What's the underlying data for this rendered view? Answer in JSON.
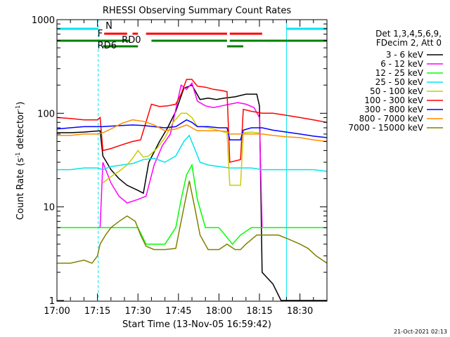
{
  "chart_data": {
    "type": "line",
    "title": "RHESSI Observing Summary Count Rates",
    "xlabel": "Start Time (13-Nov-05 16:59:42)",
    "ylabel_main": "Count Rate (s",
    "ylabel_sup1": "-1",
    "ylabel_mid": " detector",
    "ylabel_sup2": "-1",
    "ylabel_end": ")",
    "y_scale": "log",
    "ylim": [
      1,
      1000
    ],
    "xlim_minutes": [
      0,
      100
    ],
    "x_ticks": [
      {
        "minute": 0,
        "label": "17:00"
      },
      {
        "minute": 15,
        "label": "17:15"
      },
      {
        "minute": 30,
        "label": "17:30"
      },
      {
        "minute": 45,
        "label": "17:45"
      },
      {
        "minute": 60,
        "label": "18:00"
      },
      {
        "minute": 75,
        "label": "18:15"
      },
      {
        "minute": 90,
        "label": "18:30"
      }
    ],
    "y_ticks": [
      {
        "value": 1,
        "label": "1"
      },
      {
        "value": 10,
        "label": "10"
      },
      {
        "value": 100,
        "label": "100"
      },
      {
        "value": 1000,
        "label": "1000"
      }
    ],
    "legend_header": [
      "Det 1,3,4,5,6,9,",
      "FDecim 2, Att 0"
    ],
    "series": [
      {
        "name": "3 - 6 keV",
        "color": "#000000",
        "points": [
          [
            0,
            62
          ],
          [
            5,
            62
          ],
          [
            10,
            63
          ],
          [
            16,
            65
          ],
          [
            17,
            35
          ],
          [
            20,
            25
          ],
          [
            23,
            20
          ],
          [
            26,
            17
          ],
          [
            30,
            15
          ],
          [
            32,
            14
          ],
          [
            34,
            30
          ],
          [
            38,
            50
          ],
          [
            41,
            70
          ],
          [
            44,
            105
          ],
          [
            47,
            185
          ],
          [
            50,
            200
          ],
          [
            53,
            140
          ],
          [
            56,
            145
          ],
          [
            59,
            140
          ],
          [
            62,
            145
          ],
          [
            66,
            150
          ],
          [
            70,
            160
          ],
          [
            74,
            160
          ],
          [
            75,
            120
          ],
          [
            76,
            2
          ],
          [
            80,
            1.5
          ],
          [
            83,
            1
          ],
          [
            100,
            1
          ]
        ]
      },
      {
        "name": "6 - 12 keV",
        "color": "#ff00ff",
        "points": [
          [
            0,
            6
          ],
          [
            15,
            6
          ],
          [
            16,
            6
          ],
          [
            17,
            30
          ],
          [
            20,
            18
          ],
          [
            23,
            13
          ],
          [
            26,
            11
          ],
          [
            30,
            12
          ],
          [
            33,
            13
          ],
          [
            36,
            28
          ],
          [
            39,
            45
          ],
          [
            42,
            60
          ],
          [
            44,
            110
          ],
          [
            46,
            200
          ],
          [
            48,
            180
          ],
          [
            50,
            210
          ],
          [
            52,
            135
          ],
          [
            55,
            120
          ],
          [
            58,
            115
          ],
          [
            61,
            120
          ],
          [
            64,
            125
          ],
          [
            67,
            130
          ],
          [
            70,
            125
          ],
          [
            73,
            115
          ],
          [
            75,
            90
          ],
          [
            76,
            6
          ],
          [
            85,
            6
          ],
          [
            100,
            6
          ]
        ]
      },
      {
        "name": "12 - 25 keV",
        "color": "#00ff00",
        "points": [
          [
            0,
            6
          ],
          [
            5,
            6
          ],
          [
            10,
            6
          ],
          [
            15,
            6
          ],
          [
            20,
            6
          ],
          [
            25,
            6
          ],
          [
            30,
            6
          ],
          [
            33,
            4
          ],
          [
            40,
            4
          ],
          [
            44,
            6
          ],
          [
            46,
            12
          ],
          [
            48,
            22
          ],
          [
            50,
            28
          ],
          [
            52,
            12
          ],
          [
            55,
            6
          ],
          [
            60,
            6
          ],
          [
            65,
            4
          ],
          [
            68,
            5
          ],
          [
            72,
            6
          ],
          [
            80,
            6
          ],
          [
            90,
            6
          ],
          [
            100,
            6
          ]
        ]
      },
      {
        "name": "25 - 50 keV",
        "color": "#00e5ee",
        "points": [
          [
            0,
            25
          ],
          [
            5,
            25
          ],
          [
            10,
            26
          ],
          [
            15,
            26
          ],
          [
            17,
            25
          ],
          [
            20,
            27
          ],
          [
            24,
            28
          ],
          [
            28,
            29
          ],
          [
            32,
            32
          ],
          [
            36,
            33
          ],
          [
            40,
            30
          ],
          [
            44,
            35
          ],
          [
            47,
            50
          ],
          [
            49,
            58
          ],
          [
            51,
            42
          ],
          [
            53,
            30
          ],
          [
            56,
            28
          ],
          [
            60,
            27
          ],
          [
            64,
            26
          ],
          [
            68,
            26
          ],
          [
            72,
            26
          ],
          [
            76,
            25
          ],
          [
            80,
            25
          ],
          [
            85,
            25
          ],
          [
            90,
            25
          ],
          [
            95,
            25
          ],
          [
            100,
            24
          ]
        ]
      },
      {
        "name": "50 - 100 keV",
        "color": "#cccc00",
        "points": [
          [
            17,
            18
          ],
          [
            19,
            20
          ],
          [
            21,
            22
          ],
          [
            23,
            24
          ],
          [
            26,
            28
          ],
          [
            28,
            33
          ],
          [
            30,
            40
          ],
          [
            32,
            34
          ],
          [
            34,
            35
          ],
          [
            37,
            42
          ],
          [
            40,
            55
          ],
          [
            43,
            80
          ],
          [
            46,
            100
          ],
          [
            48,
            100
          ],
          [
            50,
            90
          ],
          [
            52,
            72
          ],
          [
            54,
            72
          ],
          [
            56,
            70
          ],
          [
            58,
            68
          ],
          [
            61,
            64
          ],
          [
            63,
            62
          ],
          [
            64,
            17
          ],
          [
            68,
            17
          ],
          [
            69,
            62
          ],
          [
            72,
            63
          ],
          [
            74,
            62
          ],
          [
            75,
            61
          ]
        ]
      },
      {
        "name": "100 - 300 keV",
        "color": "#ff0000",
        "points": [
          [
            0,
            90
          ],
          [
            5,
            88
          ],
          [
            10,
            85
          ],
          [
            15,
            85
          ],
          [
            16,
            90
          ],
          [
            17,
            40
          ],
          [
            20,
            42
          ],
          [
            24,
            46
          ],
          [
            28,
            50
          ],
          [
            31,
            52
          ],
          [
            35,
            125
          ],
          [
            38,
            118
          ],
          [
            41,
            120
          ],
          [
            44,
            125
          ],
          [
            46,
            160
          ],
          [
            48,
            230
          ],
          [
            50,
            230
          ],
          [
            52,
            195
          ],
          [
            55,
            190
          ],
          [
            58,
            180
          ],
          [
            61,
            175
          ],
          [
            63,
            170
          ],
          [
            64,
            30
          ],
          [
            68,
            32
          ],
          [
            69,
            110
          ],
          [
            72,
            105
          ],
          [
            76,
            100
          ],
          [
            80,
            100
          ],
          [
            85,
            95
          ],
          [
            90,
            90
          ],
          [
            95,
            85
          ],
          [
            100,
            80
          ]
        ]
      },
      {
        "name": "300 - 800 keV",
        "color": "#0000ff",
        "points": [
          [
            0,
            68
          ],
          [
            5,
            70
          ],
          [
            10,
            72
          ],
          [
            15,
            72
          ],
          [
            17,
            72
          ],
          [
            20,
            73
          ],
          [
            24,
            74
          ],
          [
            28,
            75
          ],
          [
            32,
            74
          ],
          [
            36,
            72
          ],
          [
            40,
            70
          ],
          [
            44,
            72
          ],
          [
            48,
            85
          ],
          [
            50,
            80
          ],
          [
            52,
            72
          ],
          [
            56,
            72
          ],
          [
            60,
            70
          ],
          [
            63,
            70
          ],
          [
            64,
            52
          ],
          [
            68,
            52
          ],
          [
            69,
            66
          ],
          [
            72,
            70
          ],
          [
            76,
            70
          ],
          [
            80,
            66
          ],
          [
            85,
            63
          ],
          [
            90,
            60
          ],
          [
            95,
            57
          ],
          [
            100,
            55
          ]
        ]
      },
      {
        "name": "800 - 7000 keV",
        "color": "#ff8c00",
        "points": [
          [
            0,
            58
          ],
          [
            5,
            58
          ],
          [
            10,
            60
          ],
          [
            15,
            60
          ],
          [
            17,
            62
          ],
          [
            20,
            68
          ],
          [
            24,
            78
          ],
          [
            28,
            85
          ],
          [
            32,
            82
          ],
          [
            36,
            75
          ],
          [
            40,
            65
          ],
          [
            44,
            68
          ],
          [
            48,
            75
          ],
          [
            50,
            70
          ],
          [
            52,
            65
          ],
          [
            56,
            65
          ],
          [
            60,
            65
          ],
          [
            63,
            64
          ],
          [
            64,
            60
          ],
          [
            68,
            60
          ],
          [
            69,
            60
          ],
          [
            72,
            60
          ],
          [
            76,
            60
          ],
          [
            80,
            58
          ],
          [
            85,
            56
          ],
          [
            90,
            55
          ],
          [
            95,
            52
          ],
          [
            100,
            50
          ]
        ]
      },
      {
        "name": "7000 - 15000 keV",
        "color": "#808000",
        "points": [
          [
            0,
            2.5
          ],
          [
            5,
            2.5
          ],
          [
            10,
            2.7
          ],
          [
            13,
            2.5
          ],
          [
            15,
            3
          ],
          [
            16,
            4
          ],
          [
            18,
            5
          ],
          [
            20,
            6
          ],
          [
            23,
            7
          ],
          [
            26,
            8
          ],
          [
            29,
            7
          ],
          [
            31,
            5
          ],
          [
            33,
            3.8
          ],
          [
            36,
            3.5
          ],
          [
            40,
            3.5
          ],
          [
            44,
            3.6
          ],
          [
            46,
            7
          ],
          [
            49,
            19
          ],
          [
            51,
            10
          ],
          [
            53,
            5
          ],
          [
            56,
            3.5
          ],
          [
            60,
            3.5
          ],
          [
            63,
            4
          ],
          [
            66,
            3.5
          ],
          [
            68,
            3.5
          ],
          [
            70,
            4
          ],
          [
            74,
            5
          ],
          [
            78,
            5
          ],
          [
            82,
            5
          ],
          [
            86,
            4.5
          ],
          [
            90,
            4
          ],
          [
            93,
            3.6
          ],
          [
            96,
            3
          ],
          [
            100,
            2.5
          ]
        ]
      }
    ],
    "flags": [
      {
        "label": "N",
        "color": "#00e5ee",
        "row": 1,
        "segments": [
          [
            0,
            15.3
          ],
          [
            85,
            100
          ]
        ]
      },
      {
        "label": "F",
        "color": "#ff0000",
        "row": 2,
        "segments": [
          [
            17.5,
            26
          ],
          [
            28,
            30
          ],
          [
            33,
            63
          ],
          [
            64,
            76
          ]
        ]
      },
      {
        "label": "RD0",
        "color": "#008000",
        "row": 3,
        "segments": [
          [
            0,
            27
          ],
          [
            35,
            63
          ],
          [
            64,
            100
          ]
        ]
      },
      {
        "label": "RD6",
        "color": "#008000",
        "row": 4,
        "segments": [
          [
            17,
            30
          ],
          [
            63,
            69
          ]
        ]
      }
    ],
    "vlines": [
      {
        "minute": 15.3,
        "color": "#00e5ee",
        "style": "dashed"
      },
      {
        "minute": 85,
        "color": "#00e5ee",
        "style": "solid"
      },
      {
        "minute": 100,
        "color": "#00e5ee",
        "style": "dashed"
      },
      {
        "minute": 0,
        "color": "#00e5ee",
        "style": "solid"
      }
    ],
    "timestamp": "21-Oct-2021 02:13"
  }
}
